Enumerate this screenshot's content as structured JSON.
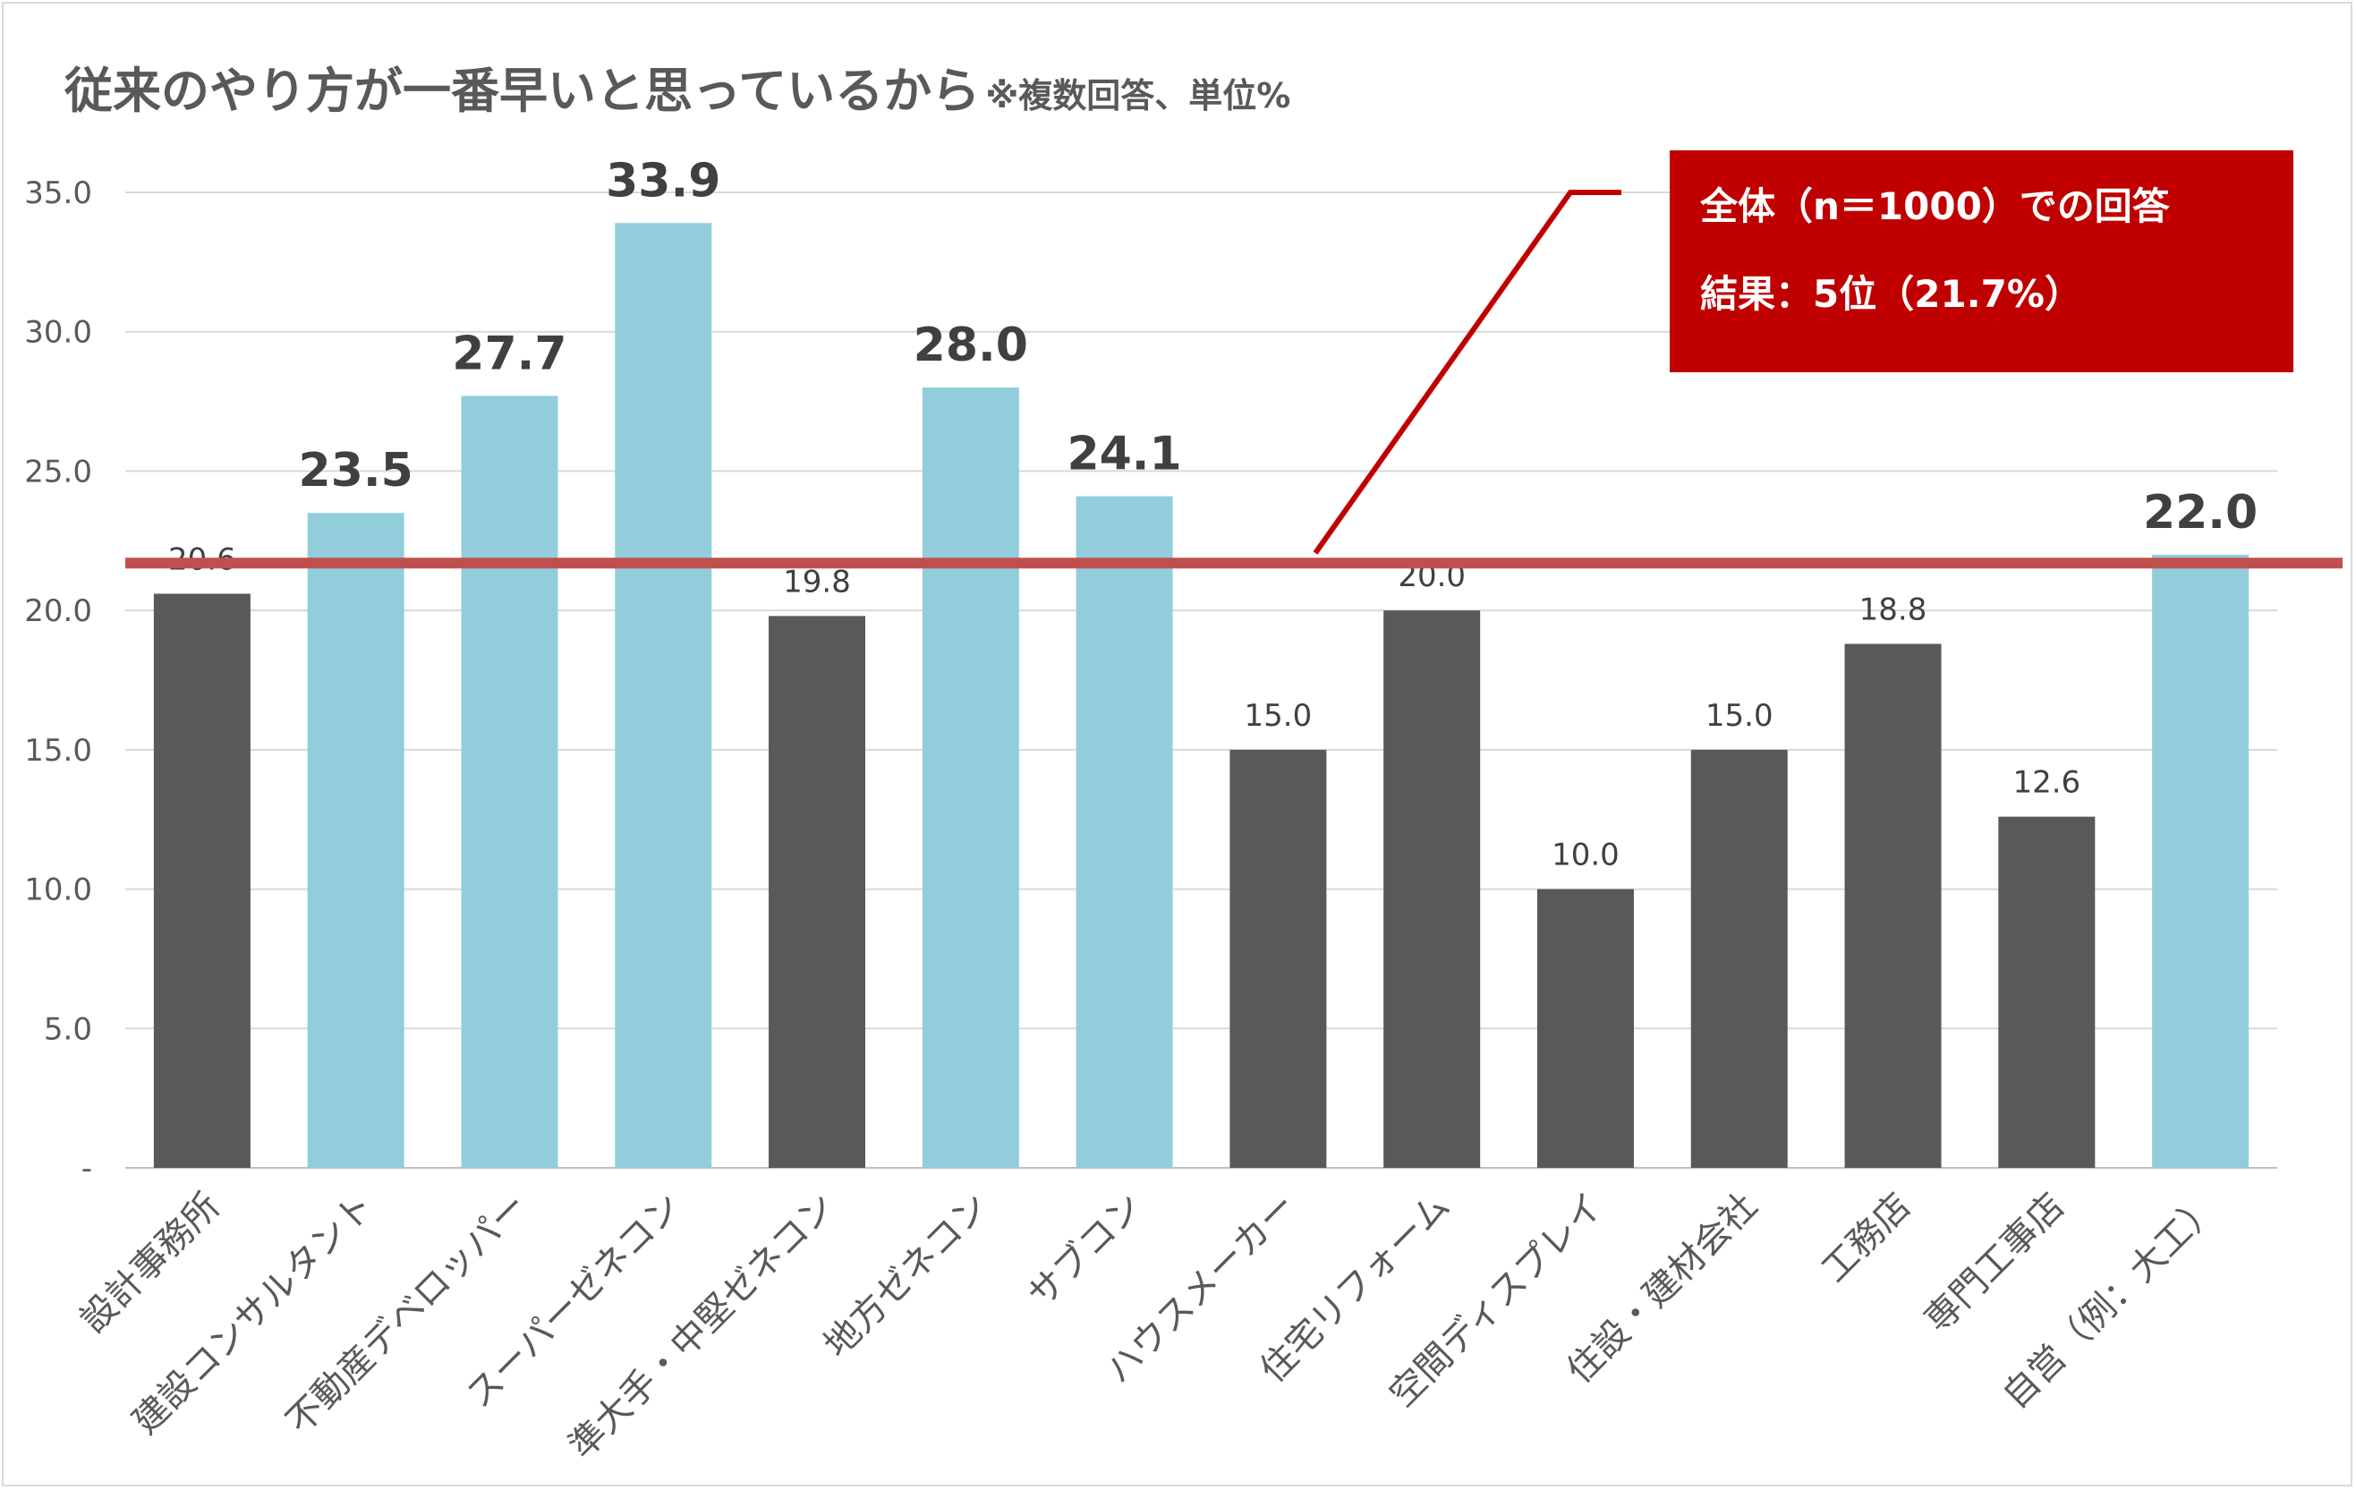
{
  "title": "従来のやり方が一番早いと思っているから",
  "title_note": "※複数回答、単位%",
  "callout": {
    "line1": "全体（n＝1000）での回答",
    "line2": "結果：5位（21.7%）"
  },
  "colors": {
    "highlight": "#92cddc",
    "normal": "#595959",
    "reference_line": "#c0504d",
    "callout_bg": "#c00000"
  },
  "chart_data": {
    "type": "bar",
    "categories": [
      "設計事務所",
      "建設コンサルタント",
      "不動産デベロッパー",
      "スーパーゼネコン",
      "準大手・中堅ゼネコン",
      "地方ゼネコン",
      "サブコン",
      "ハウスメーカー",
      "住宅リフォーム",
      "空間ディスプレイ",
      "住設・建材会社",
      "工務店",
      "専門工事店",
      "自営（例：大工）"
    ],
    "values": [
      20.6,
      23.5,
      27.7,
      33.9,
      19.8,
      28.0,
      24.1,
      15.0,
      20.0,
      10.0,
      15.0,
      18.8,
      12.6,
      22.0
    ],
    "value_labels": [
      "20.6",
      "23.5",
      "27.7",
      "33.9",
      "19.8",
      "28.0",
      "24.1",
      "15.0",
      "20.0",
      "10.0",
      "15.0",
      "18.8",
      "12.6",
      "22.0"
    ],
    "highlighted": [
      false,
      true,
      true,
      true,
      false,
      true,
      true,
      false,
      false,
      false,
      false,
      false,
      false,
      true
    ],
    "reference_value": 21.7,
    "ylim": [
      0,
      35
    ],
    "yticks": [
      0,
      5,
      10,
      15,
      20,
      25,
      30,
      35
    ],
    "ytick_labels": [
      "-",
      "5.0",
      "10.0",
      "15.0",
      "20.0",
      "25.0",
      "30.0",
      "35.0"
    ],
    "grid": true
  }
}
